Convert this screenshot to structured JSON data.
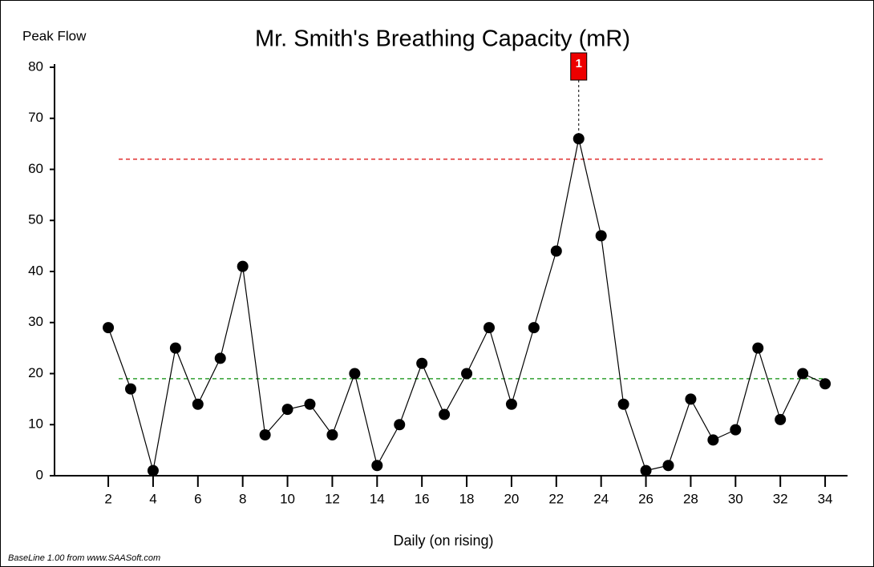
{
  "chart_data": {
    "type": "line",
    "title": "Mr. Smith's Breathing Capacity (mR)",
    "y_label": "Peak Flow",
    "x_label": "Daily (on rising)",
    "footer": "BaseLine 1.00 from www.SAASoft.com",
    "x": [
      2,
      3,
      4,
      5,
      6,
      7,
      8,
      9,
      10,
      11,
      12,
      13,
      14,
      15,
      16,
      17,
      18,
      19,
      20,
      21,
      22,
      23,
      24,
      25,
      26,
      27,
      28,
      29,
      30,
      31,
      32,
      33,
      34
    ],
    "series": [
      {
        "name": "Peak Flow",
        "color": "#000000",
        "values": [
          29,
          17,
          1,
          25,
          14,
          23,
          41,
          8,
          13,
          14,
          8,
          20,
          2,
          10,
          22,
          12,
          20,
          29,
          14,
          29,
          44,
          66,
          47,
          14,
          1,
          2,
          15,
          7,
          9,
          25,
          11,
          20,
          18
        ]
      }
    ],
    "xlim": [
      -0.4,
      35
    ],
    "xticks": [
      2,
      4,
      6,
      8,
      10,
      12,
      14,
      16,
      18,
      20,
      22,
      24,
      26,
      28,
      30,
      32,
      34
    ],
    "ylim": [
      0,
      80
    ],
    "yticks": [
      0,
      10,
      20,
      30,
      40,
      50,
      60,
      70,
      80
    ],
    "reference_lines": [
      {
        "value": 62,
        "color": "#e03030"
      },
      {
        "value": 19,
        "color": "#30a030"
      },
      {
        "value": 0,
        "color": "#e03030"
      }
    ],
    "annotations": [
      {
        "x": 23,
        "label": "1",
        "color": "#ee0000"
      }
    ]
  }
}
